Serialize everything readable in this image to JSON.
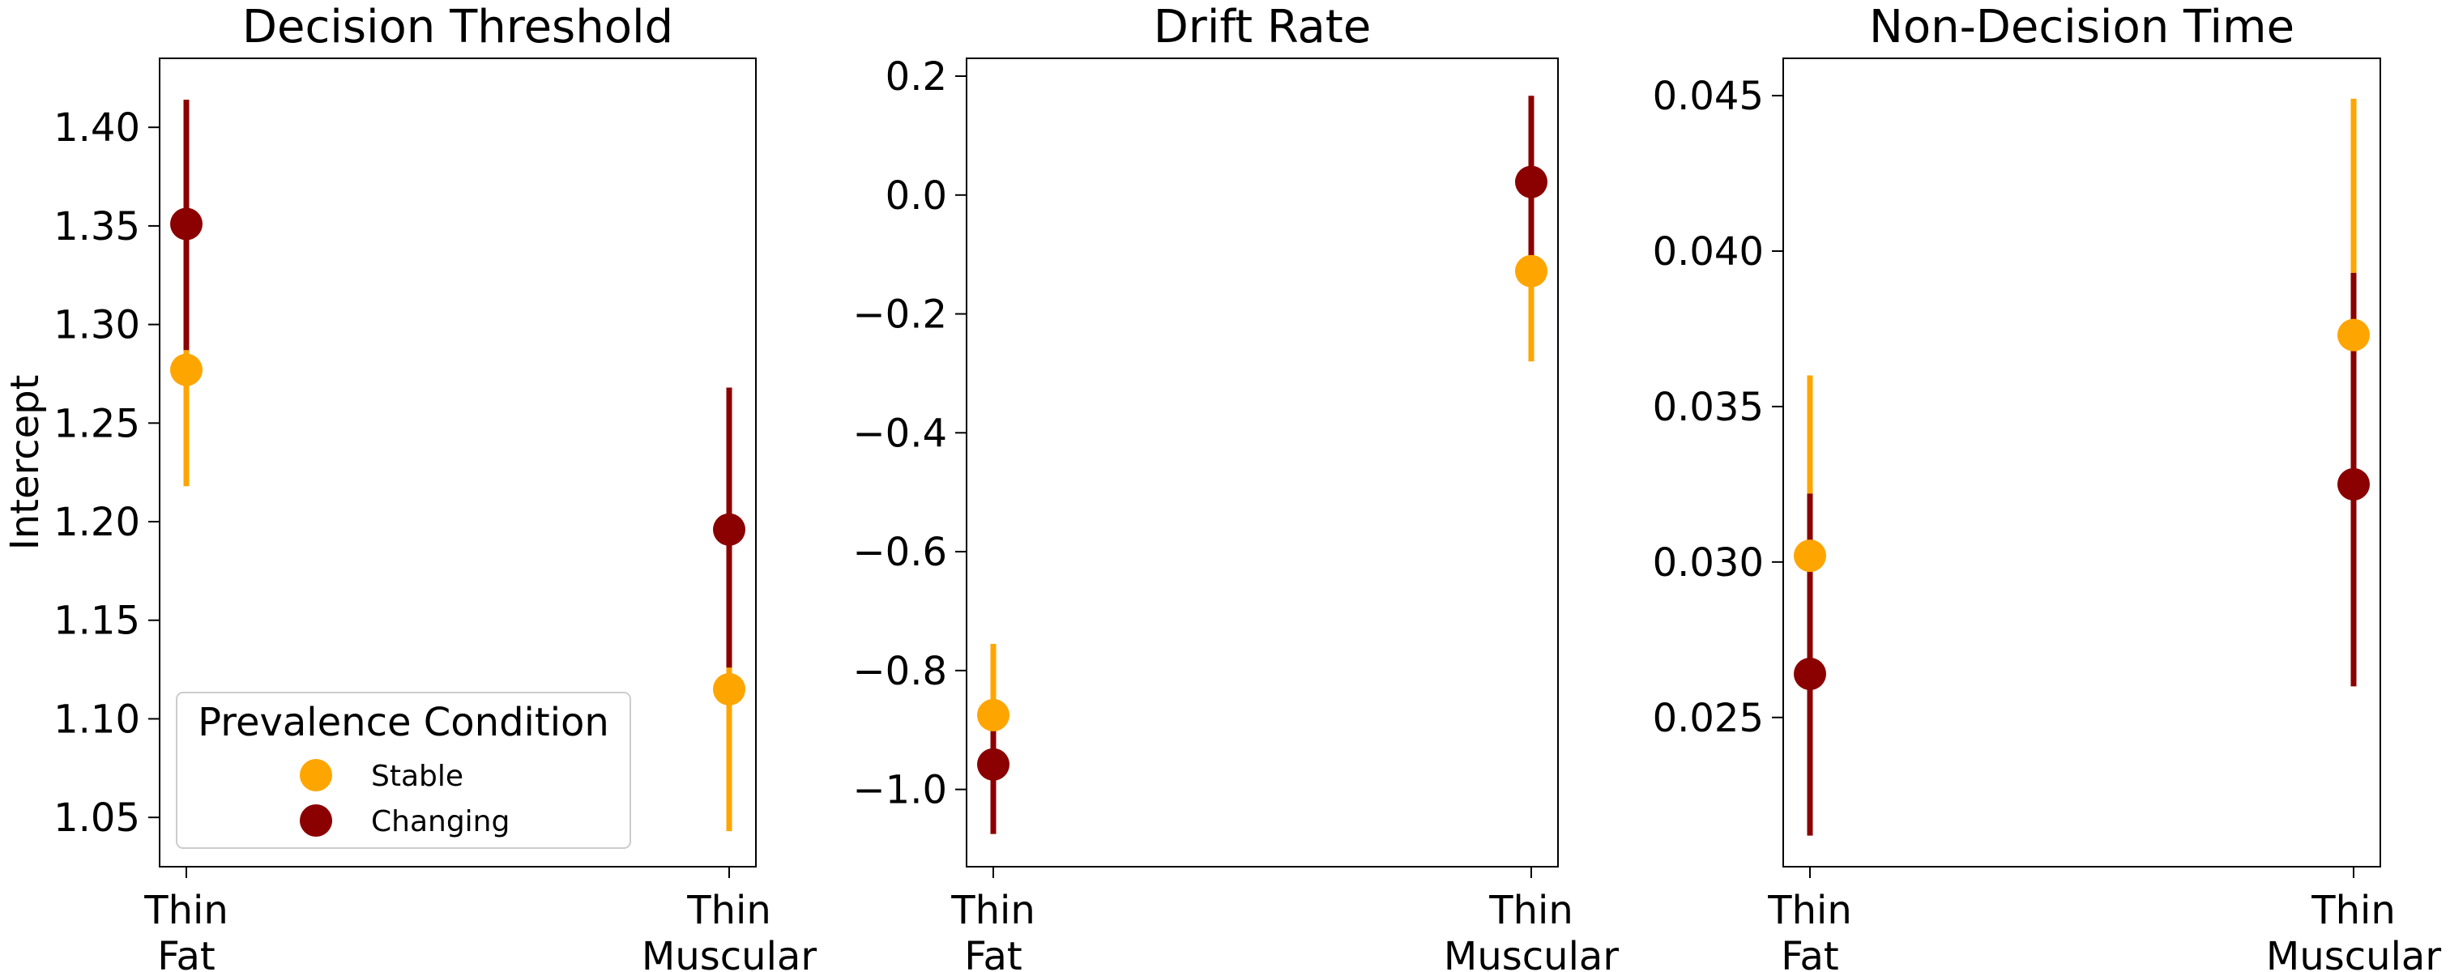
{
  "legend": {
    "title": "Prevalence Condition",
    "entries": [
      {
        "label": "Stable",
        "color": "#FFA500"
      },
      {
        "label": "Changing",
        "color": "#8B0000"
      }
    ]
  },
  "chart_data": [
    {
      "type": "scatter",
      "title": "Decision Threshold",
      "xlabel": "",
      "ylabel": "Intercept",
      "categories": [
        [
          "Thin",
          "Fat"
        ],
        [
          "Thin",
          "Muscular"
        ]
      ],
      "ylim": [
        1.025,
        1.435
      ],
      "yticks": [
        1.05,
        1.1,
        1.15,
        1.2,
        1.25,
        1.3,
        1.35,
        1.4
      ],
      "ytick_labels": [
        "1.05",
        "1.10",
        "1.15",
        "1.20",
        "1.25",
        "1.30",
        "1.35",
        "1.40"
      ],
      "grid": false,
      "legend_position": "lower-left",
      "series": [
        {
          "name": "Stable",
          "color": "#FFA500",
          "values": [
            1.277,
            1.115
          ],
          "lower": [
            1.218,
            1.043
          ],
          "upper": [
            1.287,
            1.186
          ]
        },
        {
          "name": "Changing",
          "color": "#8B0000",
          "values": [
            1.351,
            1.196
          ],
          "lower": [
            1.287,
            1.126
          ],
          "upper": [
            1.414,
            1.268
          ]
        }
      ]
    },
    {
      "type": "scatter",
      "title": "Drift Rate",
      "xlabel": "",
      "ylabel": "",
      "categories": [
        [
          "Thin",
          "Fat"
        ],
        [
          "Thin",
          "Muscular"
        ]
      ],
      "ylim": [
        -1.13,
        0.23
      ],
      "yticks": [
        -1.0,
        -0.8,
        -0.6,
        -0.4,
        -0.2,
        0.0,
        0.2
      ],
      "ytick_labels": [
        "−1.0",
        "−0.8",
        "−0.6",
        "−0.4",
        "−0.2",
        "0.0",
        "0.2"
      ],
      "grid": false,
      "series": [
        {
          "name": "Stable",
          "color": "#FFA500",
          "values": [
            -0.875,
            -0.128
          ],
          "lower": [
            -0.85,
            -0.28
          ],
          "upper": [
            -0.755,
            -0.13
          ]
        },
        {
          "name": "Changing",
          "color": "#8B0000",
          "values": [
            -0.958,
            0.022
          ],
          "lower": [
            -1.075,
            -0.13
          ],
          "upper": [
            -0.85,
            0.167
          ]
        }
      ]
    },
    {
      "type": "scatter",
      "title": "Non-Decision Time",
      "xlabel": "",
      "ylabel": "",
      "categories": [
        [
          "Thin",
          "Fat"
        ],
        [
          "Thin",
          "Muscular"
        ]
      ],
      "ylim": [
        0.0202,
        0.0462
      ],
      "yticks": [
        0.025,
        0.03,
        0.035,
        0.04,
        0.045
      ],
      "ytick_labels": [
        "0.025",
        "0.030",
        "0.035",
        "0.040",
        "0.045"
      ],
      "grid": false,
      "series": [
        {
          "name": "Stable",
          "color": "#FFA500",
          "values": [
            0.0302,
            0.0373
          ],
          "lower": [
            0.0322,
            0.0393
          ],
          "upper": [
            0.036,
            0.0449
          ]
        },
        {
          "name": "Changing",
          "color": "#8B0000",
          "values": [
            0.0264,
            0.0325
          ],
          "lower": [
            0.0212,
            0.026
          ],
          "upper": [
            0.0322,
            0.0393
          ]
        }
      ]
    }
  ]
}
